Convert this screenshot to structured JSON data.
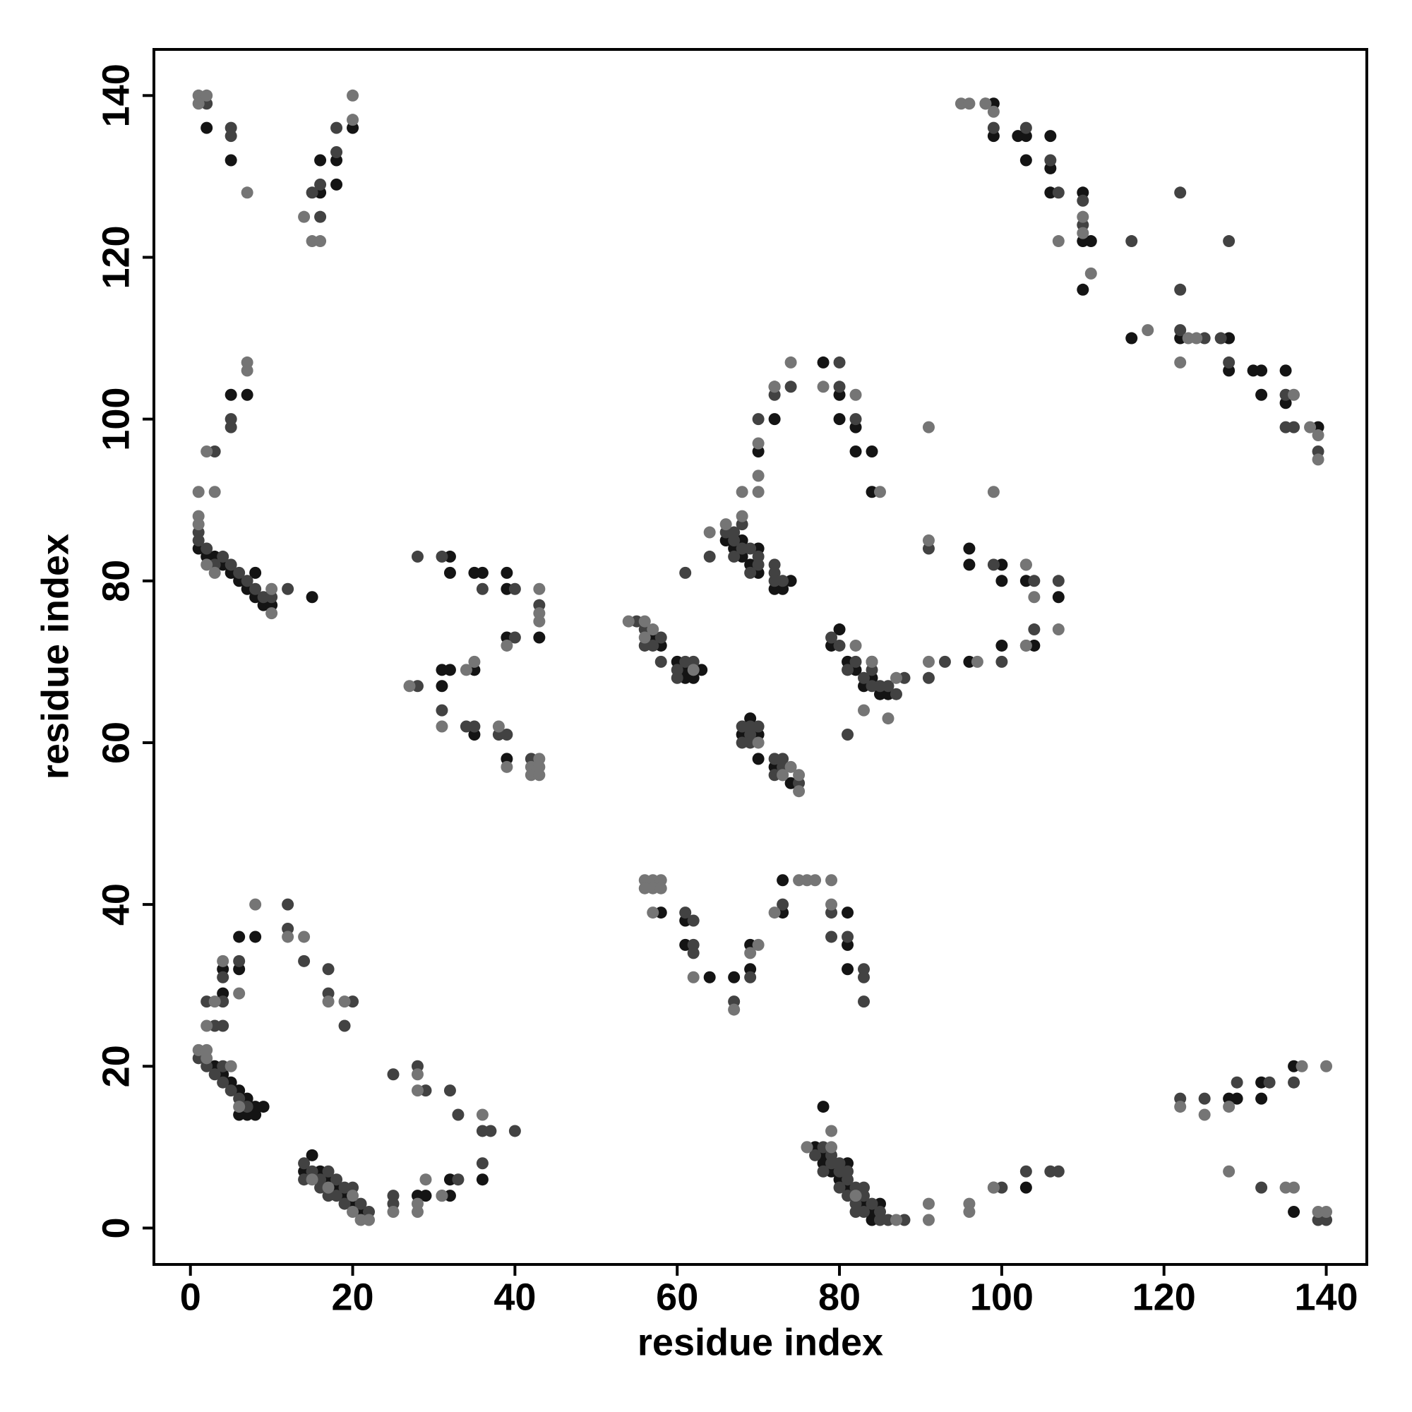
{
  "chart_data": {
    "type": "scatter",
    "xlabel": "residue index",
    "ylabel": "residue index",
    "xlim": [
      -4.5,
      145
    ],
    "ylim": [
      -4.5,
      145.7
    ],
    "xticks": [
      0,
      20,
      40,
      60,
      80,
      100,
      120,
      140
    ],
    "yticks": [
      0,
      20,
      40,
      60,
      80,
      100,
      120,
      140
    ],
    "series": [
      {
        "color": "#141414",
        "x": [
          1,
          2,
          3,
          4,
          5,
          6,
          7,
          8,
          9,
          10,
          8,
          15,
          5,
          7,
          2,
          5,
          16,
          16,
          18,
          18,
          20,
          3,
          4,
          5,
          6,
          7,
          8,
          9,
          6,
          7,
          8,
          4,
          4,
          6,
          6,
          8,
          15,
          14,
          16,
          17,
          18,
          19,
          20,
          21,
          28,
          29,
          31,
          32,
          32,
          36,
          32,
          32,
          35,
          36,
          39,
          39,
          39,
          43,
          31,
          32,
          35,
          31,
          35,
          39,
          57,
          58,
          60,
          61,
          62,
          63,
          61,
          66,
          67,
          68,
          68,
          69,
          70,
          70,
          72,
          73,
          74,
          70,
          72,
          72,
          78,
          80,
          80,
          82,
          82,
          84,
          84,
          80,
          79,
          81,
          82,
          83,
          84,
          84,
          85,
          86,
          68,
          69,
          70,
          70,
          72,
          73,
          74,
          96,
          96,
          100,
          100,
          103,
          104,
          107,
          100,
          96,
          58,
          61,
          61,
          64,
          67,
          69,
          69,
          73,
          73,
          81,
          81,
          81,
          77,
          78,
          78,
          79,
          80,
          81,
          81,
          82,
          83,
          84,
          84,
          85,
          78,
          103,
          99,
          99,
          102,
          103,
          103,
          106,
          106,
          106,
          110,
          110,
          111,
          110,
          116,
          122,
          128,
          128,
          131,
          132,
          132,
          135,
          135,
          139,
          128,
          129,
          132,
          132,
          136,
          136
        ],
        "values": [
          84,
          83,
          83,
          82,
          81,
          80,
          79,
          78,
          77,
          77,
          81,
          78,
          103,
          103,
          136,
          132,
          132,
          128,
          132,
          129,
          136,
          20,
          19,
          18,
          17,
          16,
          15,
          15,
          14,
          14,
          14,
          32,
          29,
          32,
          36,
          36,
          9,
          7,
          7,
          6,
          5,
          4,
          3,
          2,
          4,
          4,
          4,
          4,
          6,
          6,
          83,
          81,
          81,
          81,
          81,
          79,
          73,
          73,
          69,
          69,
          69,
          67,
          61,
          58,
          73,
          72,
          70,
          69,
          68,
          69,
          68,
          85,
          84,
          85,
          83,
          82,
          84,
          81,
          79,
          79,
          80,
          96,
          100,
          104,
          107,
          103,
          100,
          99,
          96,
          96,
          91,
          74,
          72,
          70,
          69,
          67,
          70,
          68,
          66,
          66,
          61,
          63,
          61,
          58,
          57,
          56,
          55,
          84,
          82,
          82,
          80,
          80,
          72,
          78,
          72,
          70,
          39,
          38,
          35,
          31,
          31,
          35,
          32,
          43,
          39,
          39,
          35,
          32,
          10,
          9,
          8,
          7,
          6,
          8,
          5,
          4,
          3,
          2,
          1,
          3,
          15,
          5,
          139,
          135,
          135,
          135,
          132,
          135,
          131,
          128,
          128,
          122,
          122,
          116,
          110,
          110,
          110,
          106,
          106,
          106,
          103,
          106,
          102,
          99,
          16,
          16,
          18,
          16,
          20,
          2
        ]
      },
      {
        "color": "#424242",
        "x": [
          2,
          3,
          4,
          5,
          6,
          7,
          8,
          9,
          1,
          1,
          10,
          12,
          5,
          5,
          3,
          2,
          5,
          5,
          16,
          16,
          18,
          18,
          15,
          1,
          2,
          4,
          5,
          6,
          7,
          3,
          4,
          2,
          4,
          4,
          6,
          3,
          4,
          12,
          12,
          14,
          17,
          17,
          20,
          19,
          14,
          14,
          15,
          16,
          16,
          17,
          17,
          18,
          18,
          19,
          19,
          20,
          21,
          22,
          25,
          25,
          25,
          28,
          29,
          32,
          33,
          36,
          37,
          40,
          36,
          33,
          28,
          31,
          36,
          40,
          40,
          43,
          28,
          34,
          35,
          38,
          39,
          42,
          31,
          55,
          56,
          56,
          57,
          58,
          58,
          60,
          61,
          60,
          62,
          61,
          64,
          66,
          67,
          67,
          67,
          68,
          68,
          69,
          69,
          70,
          70,
          72,
          72,
          72,
          73,
          72,
          74,
          80,
          80,
          82,
          70,
          79,
          80,
          81,
          82,
          83,
          84,
          84,
          85,
          86,
          87,
          88,
          81,
          68,
          68,
          69,
          69,
          69,
          70,
          72,
          72,
          73,
          73,
          75,
          91,
          99,
          103,
          104,
          104,
          103,
          107,
          91,
          93,
          100,
          61,
          62,
          62,
          62,
          67,
          69,
          73,
          79,
          79,
          81,
          83,
          83,
          83,
          76,
          77,
          78,
          78,
          79,
          79,
          80,
          80,
          80,
          81,
          81,
          81,
          82,
          82,
          82,
          83,
          83,
          83,
          84,
          85,
          85,
          86,
          88,
          99,
          100,
          103,
          106,
          107,
          98,
          99,
          103,
          106,
          107,
          110,
          110,
          116,
          122,
          122,
          122,
          125,
          127,
          128,
          128,
          135,
          135,
          136,
          139,
          122,
          125,
          129,
          133,
          136,
          132,
          139,
          140
        ],
        "values": [
          84,
          82,
          83,
          82,
          81,
          80,
          79,
          78,
          85,
          86,
          78,
          79,
          99,
          100,
          96,
          139,
          136,
          135,
          129,
          125,
          133,
          136,
          128,
          21,
          20,
          20,
          17,
          16,
          15,
          19,
          18,
          28,
          28,
          31,
          33,
          25,
          25,
          40,
          37,
          33,
          32,
          29,
          28,
          25,
          8,
          6,
          7,
          6,
          5,
          7,
          4,
          6,
          4,
          5,
          3,
          5,
          3,
          2,
          19,
          3,
          4,
          20,
          17,
          17,
          14,
          12,
          12,
          12,
          8,
          6,
          83,
          83,
          79,
          79,
          73,
          77,
          67,
          62,
          62,
          61,
          61,
          58,
          64,
          75,
          74,
          72,
          72,
          73,
          70,
          69,
          70,
          68,
          70,
          81,
          83,
          86,
          86,
          85,
          83,
          84,
          87,
          84,
          81,
          83,
          82,
          82,
          81,
          80,
          80,
          103,
          104,
          104,
          107,
          100,
          100,
          73,
          72,
          69,
          70,
          68,
          69,
          67,
          67,
          67,
          66,
          68,
          61,
          62,
          60,
          62,
          61,
          60,
          62,
          58,
          56,
          58,
          57,
          55,
          84,
          82,
          82,
          80,
          74,
          72,
          80,
          68,
          70,
          70,
          39,
          38,
          35,
          34,
          28,
          31,
          40,
          39,
          36,
          36,
          32,
          31,
          28,
          10,
          9,
          10,
          7,
          9,
          8,
          8,
          7,
          5,
          7,
          6,
          4,
          5,
          3,
          2,
          5,
          4,
          2,
          3,
          2,
          1,
          1,
          1,
          5,
          5,
          7,
          7,
          7,
          139,
          136,
          136,
          132,
          128,
          127,
          124,
          122,
          128,
          116,
          111,
          110,
          110,
          107,
          122,
          103,
          99,
          99,
          96,
          16,
          16,
          18,
          18,
          18,
          5,
          1,
          1
        ]
      },
      {
        "color": "#757575",
        "x": [
          1,
          1,
          3,
          2,
          7,
          7,
          10,
          10,
          1,
          2,
          3,
          1,
          2,
          1,
          7,
          14,
          15,
          16,
          20,
          20,
          1,
          2,
          2,
          5,
          6,
          2,
          3,
          4,
          6,
          8,
          12,
          14,
          17,
          19,
          15,
          17,
          20,
          20,
          21,
          22,
          25,
          28,
          28,
          31,
          29,
          28,
          28,
          36,
          43,
          43,
          43,
          39,
          27,
          34,
          35,
          31,
          38,
          39,
          43,
          42,
          43,
          42,
          43,
          54,
          56,
          57,
          56,
          62,
          64,
          68,
          68,
          70,
          70,
          70,
          72,
          74,
          78,
          82,
          85,
          66,
          82,
          87,
          86,
          83,
          84,
          70,
          74,
          75,
          75,
          73,
          91,
          91,
          99,
          103,
          104,
          107,
          103,
          91,
          97,
          56,
          57,
          58,
          56,
          57,
          58,
          57,
          62,
          67,
          69,
          70,
          72,
          75,
          76,
          77,
          79,
          79,
          79,
          79,
          76,
          82,
          87,
          91,
          91,
          96,
          96,
          99,
          95,
          96,
          98,
          99,
          110,
          110,
          107,
          111,
          118,
          122,
          123,
          124,
          136,
          138,
          139,
          139,
          122,
          125,
          128,
          128,
          135,
          136,
          137,
          140,
          139,
          140
        ],
        "values": [
          88,
          91,
          91,
          96,
          106,
          107,
          76,
          79,
          87,
          82,
          81,
          140,
          140,
          139,
          128,
          125,
          122,
          122,
          137,
          140,
          22,
          22,
          21,
          20,
          15,
          25,
          28,
          33,
          29,
          40,
          36,
          36,
          28,
          28,
          6,
          5,
          4,
          2,
          1,
          1,
          2,
          2,
          3,
          4,
          6,
          19,
          17,
          14,
          79,
          76,
          75,
          72,
          67,
          69,
          70,
          62,
          62,
          57,
          58,
          57,
          57,
          56,
          56,
          75,
          75,
          74,
          73,
          69,
          86,
          88,
          91,
          91,
          93,
          97,
          104,
          107,
          104,
          103,
          91,
          87,
          72,
          68,
          63,
          64,
          70,
          60,
          57,
          56,
          54,
          56,
          85,
          99,
          91,
          82,
          78,
          74,
          72,
          70,
          70,
          43,
          43,
          43,
          42,
          42,
          42,
          39,
          31,
          27,
          34,
          35,
          39,
          43,
          43,
          43,
          43,
          40,
          12,
          10,
          10,
          4,
          1,
          1,
          3,
          3,
          2,
          5,
          139,
          139,
          139,
          138,
          125,
          123,
          122,
          118,
          111,
          107,
          110,
          110,
          103,
          99,
          98,
          95,
          15,
          14,
          15,
          7,
          5,
          5,
          20,
          20,
          2,
          2
        ]
      }
    ]
  }
}
